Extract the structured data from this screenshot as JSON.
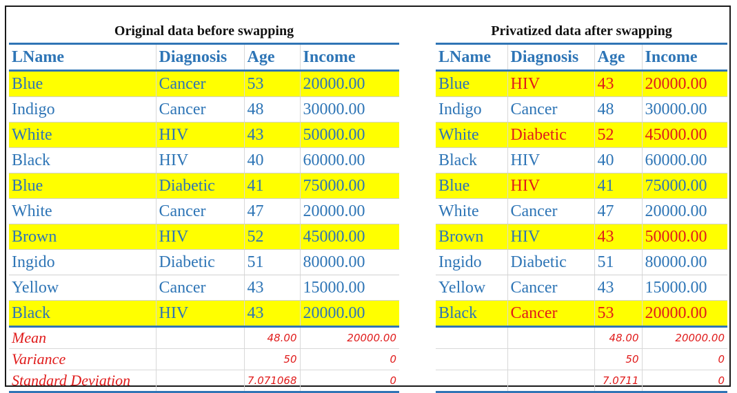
{
  "left": {
    "caption": "Original data before swapping",
    "headers": [
      "LName",
      "Diagnosis",
      "Age",
      "Income"
    ],
    "rows": [
      {
        "hl": true,
        "cells": [
          "Blue",
          "Cancer",
          "53",
          "20000.00"
        ],
        "red": [
          false,
          false,
          false,
          false
        ]
      },
      {
        "hl": false,
        "cells": [
          "Indigo",
          "Cancer",
          "48",
          "30000.00"
        ],
        "red": [
          false,
          false,
          false,
          false
        ]
      },
      {
        "hl": true,
        "cells": [
          "White",
          "HIV",
          "43",
          "50000.00"
        ],
        "red": [
          false,
          false,
          false,
          false
        ]
      },
      {
        "hl": false,
        "cells": [
          "Black",
          "HIV",
          "40",
          "60000.00"
        ],
        "red": [
          false,
          false,
          false,
          false
        ]
      },
      {
        "hl": true,
        "cells": [
          "Blue",
          "Diabetic",
          "41",
          "75000.00"
        ],
        "red": [
          false,
          false,
          false,
          false
        ]
      },
      {
        "hl": false,
        "cells": [
          "White",
          "Cancer",
          "47",
          "20000.00"
        ],
        "red": [
          false,
          false,
          false,
          false
        ]
      },
      {
        "hl": true,
        "cells": [
          "Brown",
          "HIV",
          "52",
          "45000.00"
        ],
        "red": [
          false,
          false,
          false,
          false
        ]
      },
      {
        "hl": false,
        "cells": [
          "Ingido",
          "Diabetic",
          "51",
          "80000.00"
        ],
        "red": [
          false,
          false,
          false,
          false
        ]
      },
      {
        "hl": false,
        "cells": [
          "Yellow",
          "Cancer",
          "43",
          "15000.00"
        ],
        "red": [
          false,
          false,
          false,
          false
        ]
      },
      {
        "hl": true,
        "cells": [
          "Black",
          "HIV",
          "43",
          "20000.00"
        ],
        "red": [
          false,
          false,
          false,
          false
        ]
      }
    ],
    "stats": [
      {
        "label": "Mean",
        "age": "48.00",
        "income": "20000.00"
      },
      {
        "label": "Variance",
        "age": "50",
        "income": "0"
      },
      {
        "label": "Standard Deviation",
        "age": "7.071068",
        "income": "0"
      }
    ]
  },
  "right": {
    "caption": "Privatized data after swapping",
    "headers": [
      "LName",
      "Diagnosis",
      "Age",
      "Income"
    ],
    "rows": [
      {
        "hl": true,
        "cells": [
          "Blue",
          "HIV",
          "43",
          "20000.00"
        ],
        "red": [
          false,
          true,
          true,
          true
        ]
      },
      {
        "hl": false,
        "cells": [
          "Indigo",
          "Cancer",
          "48",
          "30000.00"
        ],
        "red": [
          false,
          false,
          false,
          false
        ]
      },
      {
        "hl": true,
        "cells": [
          "White",
          "Diabetic",
          "52",
          "45000.00"
        ],
        "red": [
          false,
          true,
          true,
          true
        ]
      },
      {
        "hl": false,
        "cells": [
          "Black",
          "HIV",
          "40",
          "60000.00"
        ],
        "red": [
          false,
          false,
          false,
          false
        ]
      },
      {
        "hl": true,
        "cells": [
          "Blue",
          "HIV",
          "41",
          "75000.00"
        ],
        "red": [
          false,
          true,
          false,
          false
        ]
      },
      {
        "hl": false,
        "cells": [
          "White",
          "Cancer",
          "47",
          "20000.00"
        ],
        "red": [
          false,
          false,
          false,
          false
        ]
      },
      {
        "hl": true,
        "cells": [
          "Brown",
          "HIV",
          "43",
          "50000.00"
        ],
        "red": [
          false,
          false,
          true,
          true
        ]
      },
      {
        "hl": false,
        "cells": [
          "Ingido",
          "Diabetic",
          "51",
          "80000.00"
        ],
        "red": [
          false,
          false,
          false,
          false
        ]
      },
      {
        "hl": false,
        "cells": [
          "Yellow",
          "Cancer",
          "43",
          "15000.00"
        ],
        "red": [
          false,
          false,
          false,
          false
        ]
      },
      {
        "hl": true,
        "cells": [
          "Black",
          "Cancer",
          "53",
          "20000.00"
        ],
        "red": [
          false,
          true,
          true,
          true
        ]
      }
    ],
    "stats": [
      {
        "label": "",
        "age": "48.00",
        "income": "20000.00"
      },
      {
        "label": "",
        "age": "50",
        "income": "0"
      },
      {
        "label": "",
        "age": "7.0711",
        "income": "0"
      }
    ]
  },
  "colors": {
    "highlight": "#ffff00",
    "text_blue": "#2e75b6",
    "text_red": "#e01b1b",
    "rule_blue": "#2f74b5"
  }
}
